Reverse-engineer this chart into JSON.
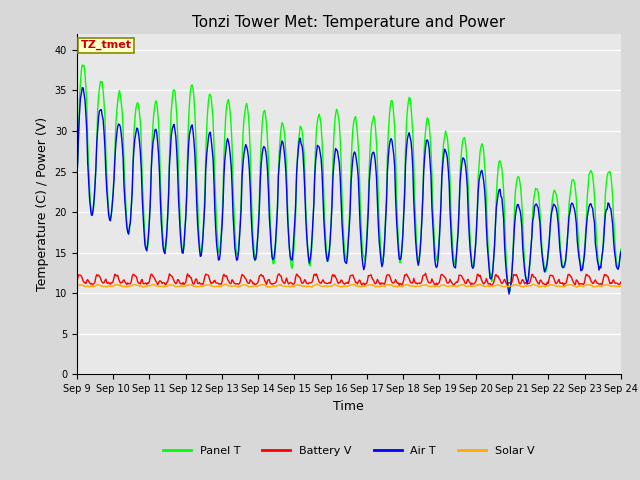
{
  "title": "Tonzi Tower Met: Temperature and Power",
  "xlabel": "Time",
  "ylabel": "Temperature (C) / Power (V)",
  "ylim": [
    0,
    42
  ],
  "yticks": [
    0,
    5,
    10,
    15,
    20,
    25,
    30,
    35,
    40
  ],
  "legend_labels": [
    "Panel T",
    "Battery V",
    "Air T",
    "Solar V"
  ],
  "legend_colors": [
    "#00ff00",
    "#ff0000",
    "#0000ff",
    "#ffaa00"
  ],
  "annotation_text": "TZ_tmet",
  "annotation_color": "#cc0000",
  "annotation_bg": "#ffffcc",
  "annotation_border": "#888800",
  "background_color": "#e8e8e8",
  "grid_color": "#ffffff",
  "title_fontsize": 11,
  "axis_fontsize": 9,
  "tick_fontsize": 7,
  "n_points": 600,
  "x_start": 9,
  "x_end": 24,
  "x_ticks": [
    9,
    10,
    11,
    12,
    13,
    14,
    15,
    16,
    17,
    18,
    19,
    20,
    21,
    22,
    23,
    24
  ],
  "x_tick_labels": [
    "Sep 9",
    "Sep 10",
    "Sep 11",
    "Sep 12",
    "Sep 13",
    "Sep 14",
    "Sep 15",
    "Sep 16",
    "Sep 17",
    "Sep 18",
    "Sep 19",
    "Sep 20",
    "Sep 21",
    "Sep 22",
    "Sep 23",
    "Sep 24"
  ]
}
